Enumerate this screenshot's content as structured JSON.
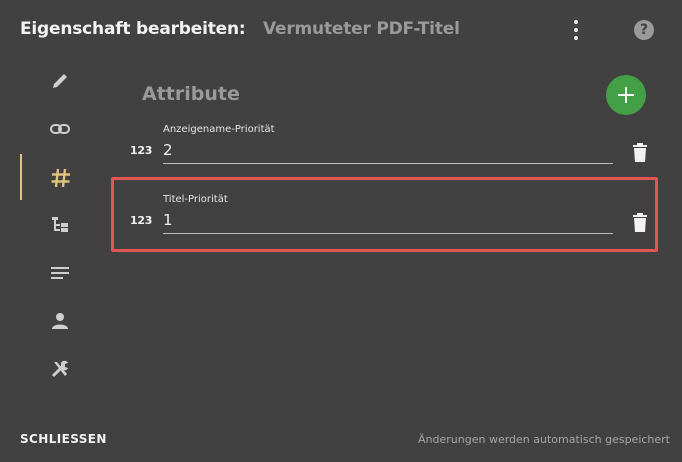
{
  "header": {
    "title": "Eigenschaft bearbeiten:",
    "subtitle": "Vermuteter PDF-Titel",
    "menu_icon": "more-vert-icon",
    "help_icon": "help-icon",
    "help_glyph": "?"
  },
  "nav": {
    "items": [
      {
        "name": "edit",
        "icon": "pencil-icon"
      },
      {
        "name": "link",
        "icon": "link-icon"
      },
      {
        "name": "attributes",
        "icon": "hash-icon",
        "active": true
      },
      {
        "name": "tree",
        "icon": "tree-icon"
      },
      {
        "name": "text",
        "icon": "lines-icon"
      },
      {
        "name": "user",
        "icon": "person-icon"
      },
      {
        "name": "tools",
        "icon": "tools-icon"
      }
    ]
  },
  "main": {
    "section_title": "Attribute",
    "add_button_icon": "plus-icon",
    "fields": [
      {
        "type_label": "123",
        "label": "Anzeigename-Priorität",
        "value": "2"
      },
      {
        "type_label": "123",
        "label": "Titel-Priorität",
        "value": "1"
      }
    ]
  },
  "footer": {
    "close_label": "SCHLIESSEN",
    "autosave_text": "Änderungen werden automatisch gespeichert"
  },
  "colors": {
    "background": "#414141",
    "accent": "#e0c27a",
    "add_button": "#43a047",
    "highlight": "#e25555"
  }
}
